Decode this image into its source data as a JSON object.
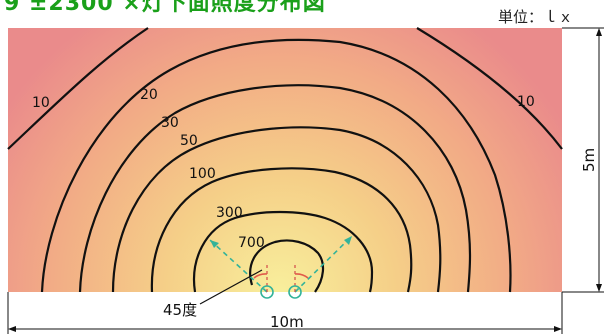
{
  "header": {
    "title": "9 ±2300 ×灯下面照度分布図",
    "unit": "単位：ｌｘ"
  },
  "diagram": {
    "contour_labels": [
      "10",
      "20",
      "30",
      "50",
      "100",
      "300",
      "700",
      "10"
    ],
    "angle_label": "45度",
    "width_label": "10m",
    "height_label": "5m"
  },
  "colors": {
    "title": "#1aa01a",
    "outer": "#ec8f8f",
    "inner": "#f8ee9a",
    "contour": "#111111",
    "beam": "#33b399"
  }
}
